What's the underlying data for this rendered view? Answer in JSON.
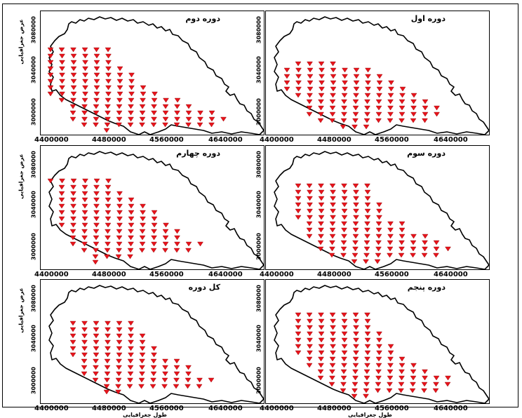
{
  "figure": {
    "colors": {
      "marker": "#e8141c",
      "marker_stroke": "#8a0000",
      "outline": "#000000"
    },
    "y_tick_labels": [
      "3080000",
      "3040000",
      "3000000"
    ],
    "y_axis_label": "عرض جغرافیایی",
    "x_tick_labels": [
      "4400000",
      "4480000",
      "4560000",
      "4640000"
    ],
    "x_axis_label": "طول جغرافیایی",
    "panels": [
      {
        "id": "p2",
        "title": "دوره دوم",
        "marker_count": 137
      },
      {
        "id": "p1",
        "title": "دوره اول",
        "marker_count": 100
      },
      {
        "id": "p4",
        "title": "دوره چهارم",
        "marker_count": 116
      },
      {
        "id": "p3",
        "title": "دوره سوم",
        "marker_count": 116
      },
      {
        "id": "p6",
        "title": "کل دوره",
        "marker_count": 93
      },
      {
        "id": "p5",
        "title": "دوره پنجم",
        "marker_count": 124
      }
    ]
  }
}
